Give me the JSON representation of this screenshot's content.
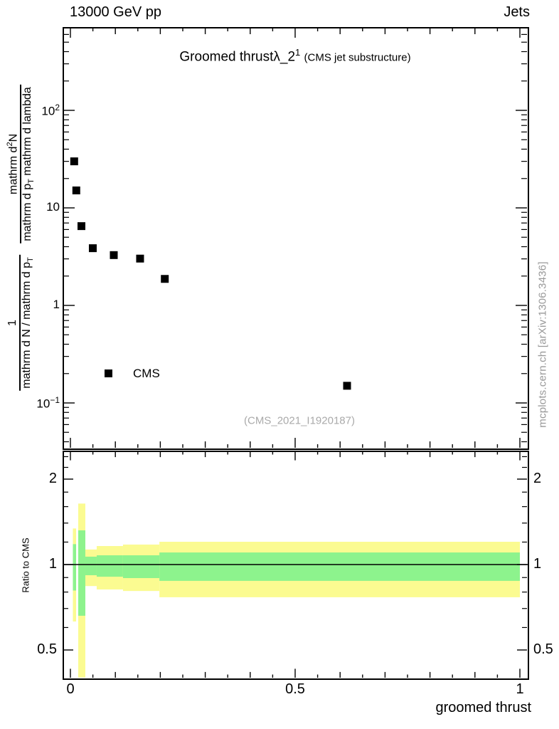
{
  "header": {
    "left": "13000 GeV pp",
    "right": "Jets"
  },
  "title": {
    "main": "Groomed thrust",
    "lambda": "λ_2",
    "sup": "1",
    "paren": "(CMS jet substructure)"
  },
  "watermark": "(CMS_2021_I1920187)",
  "side_note": "mcplots.cern.ch [arXiv:1306.3436]",
  "legend": {
    "label": "CMS",
    "marker": "filled-square-icon",
    "color": "#000000"
  },
  "axes": {
    "x": {
      "label": "groomed thrust",
      "majors": [
        {
          "v": 0,
          "label": "0"
        },
        {
          "v": 0.5,
          "label": "0.5"
        },
        {
          "v": 1,
          "label": "1"
        }
      ],
      "minor_step": 0.05,
      "medium_step": 0.1
    },
    "y_main": {
      "scale": "log10",
      "majors": [
        {
          "v": 100,
          "base": "10",
          "sup": "2"
        },
        {
          "v": 10,
          "base": "10",
          "sup": ""
        },
        {
          "v": 1,
          "base": "1",
          "sup": ""
        },
        {
          "v": 0.1,
          "base": "10",
          "sup": "−1"
        }
      ],
      "label_frac1": {
        "num": "1",
        "den_main": "mathrm d N / mathrm d p",
        "den_sub": "T"
      },
      "label_frac2": {
        "num_pre": "mathrm d",
        "num_sup": "2",
        "num_post": "N",
        "den_pre": "mathrm d p",
        "den_sub": "T",
        "den_post": " mathrm d lambda"
      }
    },
    "y_ratio": {
      "scale": "log2",
      "label": "Ratio to CMS",
      "majors": [
        {
          "v": 2,
          "label": "2"
        },
        {
          "v": 1,
          "label": "1"
        },
        {
          "v": 0.5,
          "label": "0.5"
        }
      ],
      "minors": [
        0.4,
        0.6,
        0.7,
        0.8,
        0.9,
        1.2,
        1.4,
        1.6,
        1.8,
        2.2,
        2.4
      ]
    }
  },
  "chart_data": {
    "type": "scatter",
    "title": "Groomed thrust λ_2^1 (CMS jet substructure)",
    "xlabel": "groomed thrust",
    "xlim": [
      0,
      1
    ],
    "panels": [
      {
        "name": "main",
        "yscale": "log10",
        "ylim": [
          0.034,
          700
        ],
        "series": [
          {
            "name": "CMS",
            "marker": "filled-square",
            "color": "#000000",
            "points": [
              [
                0.0084,
                30.0
              ],
              [
                0.0131,
                15.1
              ],
              [
                0.0245,
                6.5
              ],
              [
                0.0498,
                3.86
              ],
              [
                0.0965,
                3.28
              ],
              [
                0.155,
                3.02
              ],
              [
                0.21,
                1.87
              ],
              [
                0.6155,
                0.15
              ]
            ]
          }
        ]
      },
      {
        "name": "ratio",
        "yscale": "log2",
        "ylim": [
          0.4,
          2.5
        ],
        "reference_line": 1,
        "bands": [
          {
            "x": [
              0.0055,
              0.0127
            ],
            "yellow": [
              0.63,
              1.34
            ],
            "green": [
              0.81,
              1.18
            ]
          },
          {
            "x": [
              0.0174,
              0.0332
            ],
            "yellow": [
              0.4,
              1.64
            ],
            "green": [
              0.66,
              1.32
            ]
          },
          {
            "x": [
              0.0332,
              0.0585
            ],
            "yellow": [
              0.84,
              1.13
            ],
            "green": [
              0.917,
              1.066
            ]
          },
          {
            "x": [
              0.0585,
              0.117
            ],
            "yellow": [
              0.817,
              1.162
            ],
            "green": [
              0.906,
              1.078
            ]
          },
          {
            "x": [
              0.117,
              0.198
            ],
            "yellow": [
              0.807,
              1.176
            ],
            "green": [
              0.896,
              1.078
            ]
          },
          {
            "x": [
              0.198,
              1.0
            ],
            "yellow": [
              0.767,
              1.203
            ],
            "green": [
              0.876,
              1.103
            ]
          }
        ]
      }
    ]
  },
  "colors": {
    "yellow_band": "#fbfb91",
    "green_band": "#8df38d",
    "gray_text": "#999999"
  }
}
